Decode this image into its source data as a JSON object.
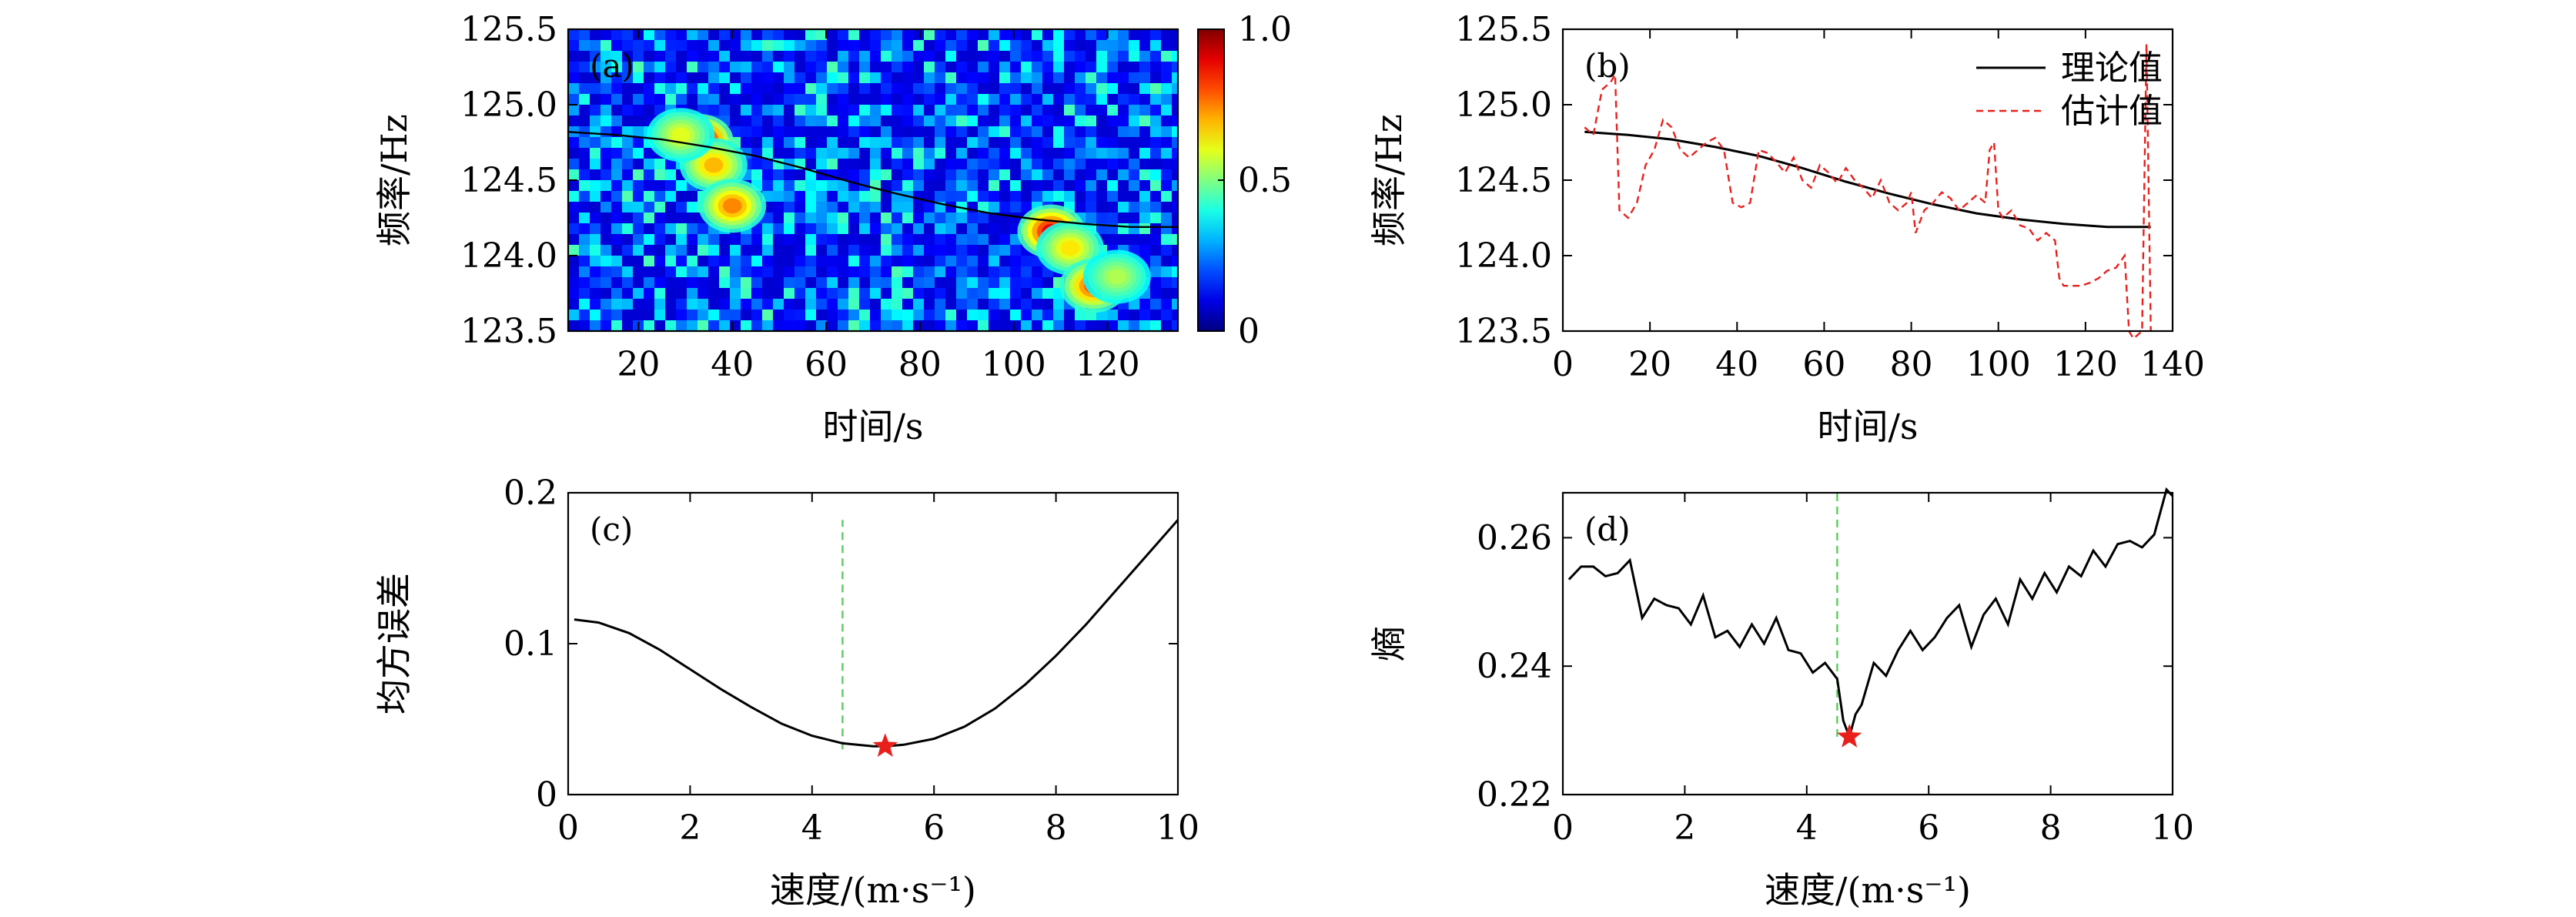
{
  "chart_data": [
    {
      "id": "a",
      "type": "heatmap",
      "panel_label": "(a)",
      "xlabel": "时间/s",
      "ylabel": "频率/Hz",
      "xlim": [
        5,
        135
      ],
      "ylim": [
        123.5,
        125.5
      ],
      "xticks": [
        20,
        40,
        60,
        80,
        100,
        120
      ],
      "yticks": [
        "123.5",
        "124.0",
        "124.5",
        "125.0",
        "125.5"
      ],
      "colorbar": {
        "ticks": [
          "0",
          "0.5",
          "1.0"
        ],
        "range": [
          0,
          1
        ],
        "colormap": "jet"
      },
      "overlay_line": {
        "x": [
          5,
          15,
          25,
          35,
          45,
          55,
          65,
          75,
          85,
          95,
          105,
          115,
          125,
          135
        ],
        "y": [
          124.82,
          124.8,
          124.77,
          124.72,
          124.66,
          124.58,
          124.49,
          124.41,
          124.34,
          124.28,
          124.24,
          124.21,
          124.19,
          124.19
        ]
      },
      "hotspots": [
        {
          "x": 33,
          "y": 124.76,
          "v": 1.0
        },
        {
          "x": 36,
          "y": 124.6,
          "v": 0.7
        },
        {
          "x": 40,
          "y": 124.33,
          "v": 0.75
        },
        {
          "x": 29,
          "y": 124.8,
          "v": 0.6
        },
        {
          "x": 108,
          "y": 124.16,
          "v": 0.9
        },
        {
          "x": 112,
          "y": 124.05,
          "v": 0.65
        },
        {
          "x": 117,
          "y": 123.8,
          "v": 0.8
        },
        {
          "x": 122,
          "y": 123.86,
          "v": 0.55
        }
      ]
    },
    {
      "id": "b",
      "type": "line",
      "panel_label": "(b)",
      "xlabel": "时间/s",
      "ylabel": "频率/Hz",
      "xlim": [
        0,
        140
      ],
      "ylim": [
        123.5,
        125.5
      ],
      "xticks": [
        0,
        20,
        40,
        60,
        80,
        100,
        120,
        140
      ],
      "yticks": [
        "123.5",
        "124.0",
        "124.5",
        "125.0",
        "125.5"
      ],
      "legend_position": "top-right",
      "series": [
        {
          "name": "理论值",
          "color": "#000000",
          "style": "solid",
          "x": [
            5,
            15,
            25,
            35,
            45,
            55,
            65,
            75,
            85,
            95,
            105,
            115,
            125,
            135
          ],
          "y": [
            124.82,
            124.8,
            124.77,
            124.72,
            124.66,
            124.58,
            124.49,
            124.41,
            124.34,
            124.28,
            124.24,
            124.21,
            124.19,
            124.19
          ]
        },
        {
          "name": "估计值",
          "color": "#e8201c",
          "style": "dashed",
          "x": [
            5,
            7,
            9,
            11,
            12,
            13,
            15,
            17,
            19,
            21,
            23,
            25,
            27,
            29,
            31,
            33,
            35,
            37,
            39,
            41,
            43,
            45,
            47,
            49,
            51,
            53,
            55,
            57,
            59,
            61,
            63,
            65,
            67,
            69,
            71,
            73,
            75,
            77,
            79,
            80,
            81,
            83,
            85,
            87,
            89,
            91,
            93,
            95,
            97,
            98,
            99,
            100,
            101,
            103,
            105,
            107,
            109,
            111,
            113,
            114,
            115,
            117,
            119,
            121,
            123,
            125,
            127,
            129,
            130,
            131,
            133,
            134,
            135
          ],
          "y": [
            124.85,
            124.8,
            125.1,
            125.15,
            125.2,
            124.3,
            124.25,
            124.35,
            124.6,
            124.7,
            124.9,
            124.85,
            124.7,
            124.65,
            124.7,
            124.75,
            124.78,
            124.7,
            124.35,
            124.32,
            124.35,
            124.7,
            124.68,
            124.62,
            124.55,
            124.65,
            124.5,
            124.45,
            124.6,
            124.55,
            124.48,
            124.58,
            124.5,
            124.45,
            124.38,
            124.5,
            124.35,
            124.3,
            124.35,
            124.42,
            124.15,
            124.3,
            124.35,
            124.42,
            124.38,
            124.3,
            124.35,
            124.4,
            124.35,
            124.7,
            124.75,
            124.3,
            124.25,
            124.3,
            124.2,
            124.18,
            124.1,
            124.15,
            124.1,
            123.85,
            123.8,
            123.8,
            123.8,
            123.82,
            123.85,
            123.9,
            123.92,
            124.0,
            123.5,
            123.45,
            123.5,
            125.4,
            123.5
          ]
        }
      ]
    },
    {
      "id": "c",
      "type": "line",
      "panel_label": "(c)",
      "xlabel": "速度/(m·s⁻¹)",
      "ylabel": "均方误差",
      "xlim": [
        0,
        10
      ],
      "ylim": [
        0,
        0.2
      ],
      "xticks": [
        0,
        2,
        4,
        6,
        8,
        10
      ],
      "yticks": [
        "0",
        "0.1",
        "0.2"
      ],
      "series": [
        {
          "color": "#000000",
          "x": [
            0.1,
            0.5,
            1,
            1.5,
            2,
            2.5,
            3,
            3.5,
            4,
            4.5,
            5,
            5.2,
            5.5,
            6,
            6.5,
            7,
            7.5,
            8,
            8.5,
            9,
            9.5,
            10
          ],
          "y": [
            0.116,
            0.114,
            0.107,
            0.096,
            0.083,
            0.07,
            0.058,
            0.047,
            0.039,
            0.034,
            0.032,
            0.032,
            0.033,
            0.037,
            0.045,
            0.057,
            0.073,
            0.092,
            0.113,
            0.136,
            0.159,
            0.182
          ]
        }
      ],
      "marker": {
        "x": 5.2,
        "y": 0.032,
        "symbol": "star",
        "color": "#e8201c"
      },
      "vline": {
        "x": 4.5,
        "y": [
          0.03,
          0.182
        ],
        "color": "#5ec85e",
        "style": "dashed"
      }
    },
    {
      "id": "d",
      "type": "line",
      "panel_label": "(d)",
      "xlabel": "速度/(m·s⁻¹)",
      "ylabel": "熵",
      "xlim": [
        0,
        10
      ],
      "ylim": [
        0.22,
        0.267
      ],
      "xticks": [
        0,
        2,
        4,
        6,
        8,
        10
      ],
      "yticks": [
        "0.22",
        "0.24",
        "0.26"
      ],
      "series": [
        {
          "color": "#000000",
          "x": [
            0.1,
            0.3,
            0.5,
            0.7,
            0.9,
            1.1,
            1.3,
            1.5,
            1.7,
            1.9,
            2.1,
            2.3,
            2.5,
            2.7,
            2.9,
            3.1,
            3.3,
            3.5,
            3.7,
            3.9,
            4.1,
            4.3,
            4.5,
            4.6,
            4.7,
            4.8,
            4.9,
            5.1,
            5.3,
            5.5,
            5.7,
            5.9,
            6.1,
            6.3,
            6.5,
            6.7,
            6.9,
            7.1,
            7.3,
            7.5,
            7.7,
            7.9,
            8.1,
            8.3,
            8.5,
            8.7,
            8.9,
            9.1,
            9.3,
            9.5,
            9.7,
            9.9,
            10
          ],
          "y": [
            0.2535,
            0.2555,
            0.2555,
            0.254,
            0.2545,
            0.2565,
            0.2475,
            0.2505,
            0.2495,
            0.249,
            0.2465,
            0.251,
            0.2445,
            0.2455,
            0.243,
            0.2465,
            0.2435,
            0.2475,
            0.2425,
            0.242,
            0.239,
            0.2405,
            0.238,
            0.2315,
            0.229,
            0.2325,
            0.234,
            0.2405,
            0.2385,
            0.2425,
            0.2455,
            0.2425,
            0.2445,
            0.2475,
            0.2495,
            0.243,
            0.248,
            0.2505,
            0.2465,
            0.2535,
            0.2505,
            0.2545,
            0.2515,
            0.2555,
            0.254,
            0.258,
            0.2555,
            0.259,
            0.2595,
            0.2585,
            0.2605,
            0.2675,
            0.2665
          ]
        }
      ],
      "marker": {
        "x": 4.7,
        "y": 0.229,
        "symbol": "star",
        "color": "#e8201c"
      },
      "vline": {
        "x": 4.5,
        "y": [
          0.229,
          0.2673
        ],
        "color": "#5ec85e",
        "style": "dashed"
      }
    }
  ]
}
